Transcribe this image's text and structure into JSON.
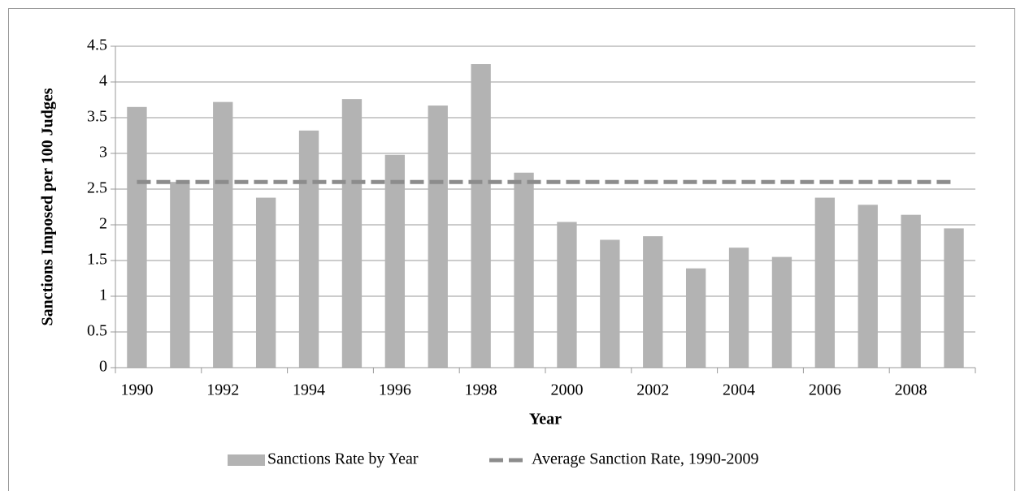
{
  "chart_data": {
    "type": "bar",
    "y_label": "Sanctions Imposed per 100 Judges",
    "x_label": "Year",
    "categories": [
      "1990",
      null,
      "1992",
      null,
      "1994",
      null,
      "1996",
      null,
      "1998",
      null,
      "2000",
      null,
      "2002",
      null,
      "2004",
      null,
      "2006",
      null,
      "2008",
      null
    ],
    "series": [
      {
        "name": "Sanctions Rate by Year",
        "color": "#b3b3b3",
        "values": [
          3.65,
          2.6,
          3.72,
          2.38,
          3.32,
          3.76,
          2.98,
          3.67,
          4.25,
          2.73,
          2.04,
          1.79,
          1.84,
          1.39,
          1.68,
          1.55,
          2.38,
          2.28,
          2.14,
          1.95
        ]
      },
      {
        "name": "Average Sanction Rate, 1990-2009",
        "color": "#8c8c8c",
        "type": "line",
        "dashed": true,
        "values": [
          2.6,
          2.6,
          2.6,
          2.6,
          2.6,
          2.6,
          2.6,
          2.6,
          2.6,
          2.6,
          2.6,
          2.6,
          2.6,
          2.6,
          2.6,
          2.6,
          2.6,
          2.6,
          2.6,
          2.6
        ]
      }
    ],
    "ylim": [
      0,
      4.5
    ],
    "yticks": [
      0,
      0.5,
      1,
      1.5,
      2,
      2.5,
      3,
      3.5,
      4,
      4.5
    ],
    "grid": true,
    "legend": "bottom"
  }
}
